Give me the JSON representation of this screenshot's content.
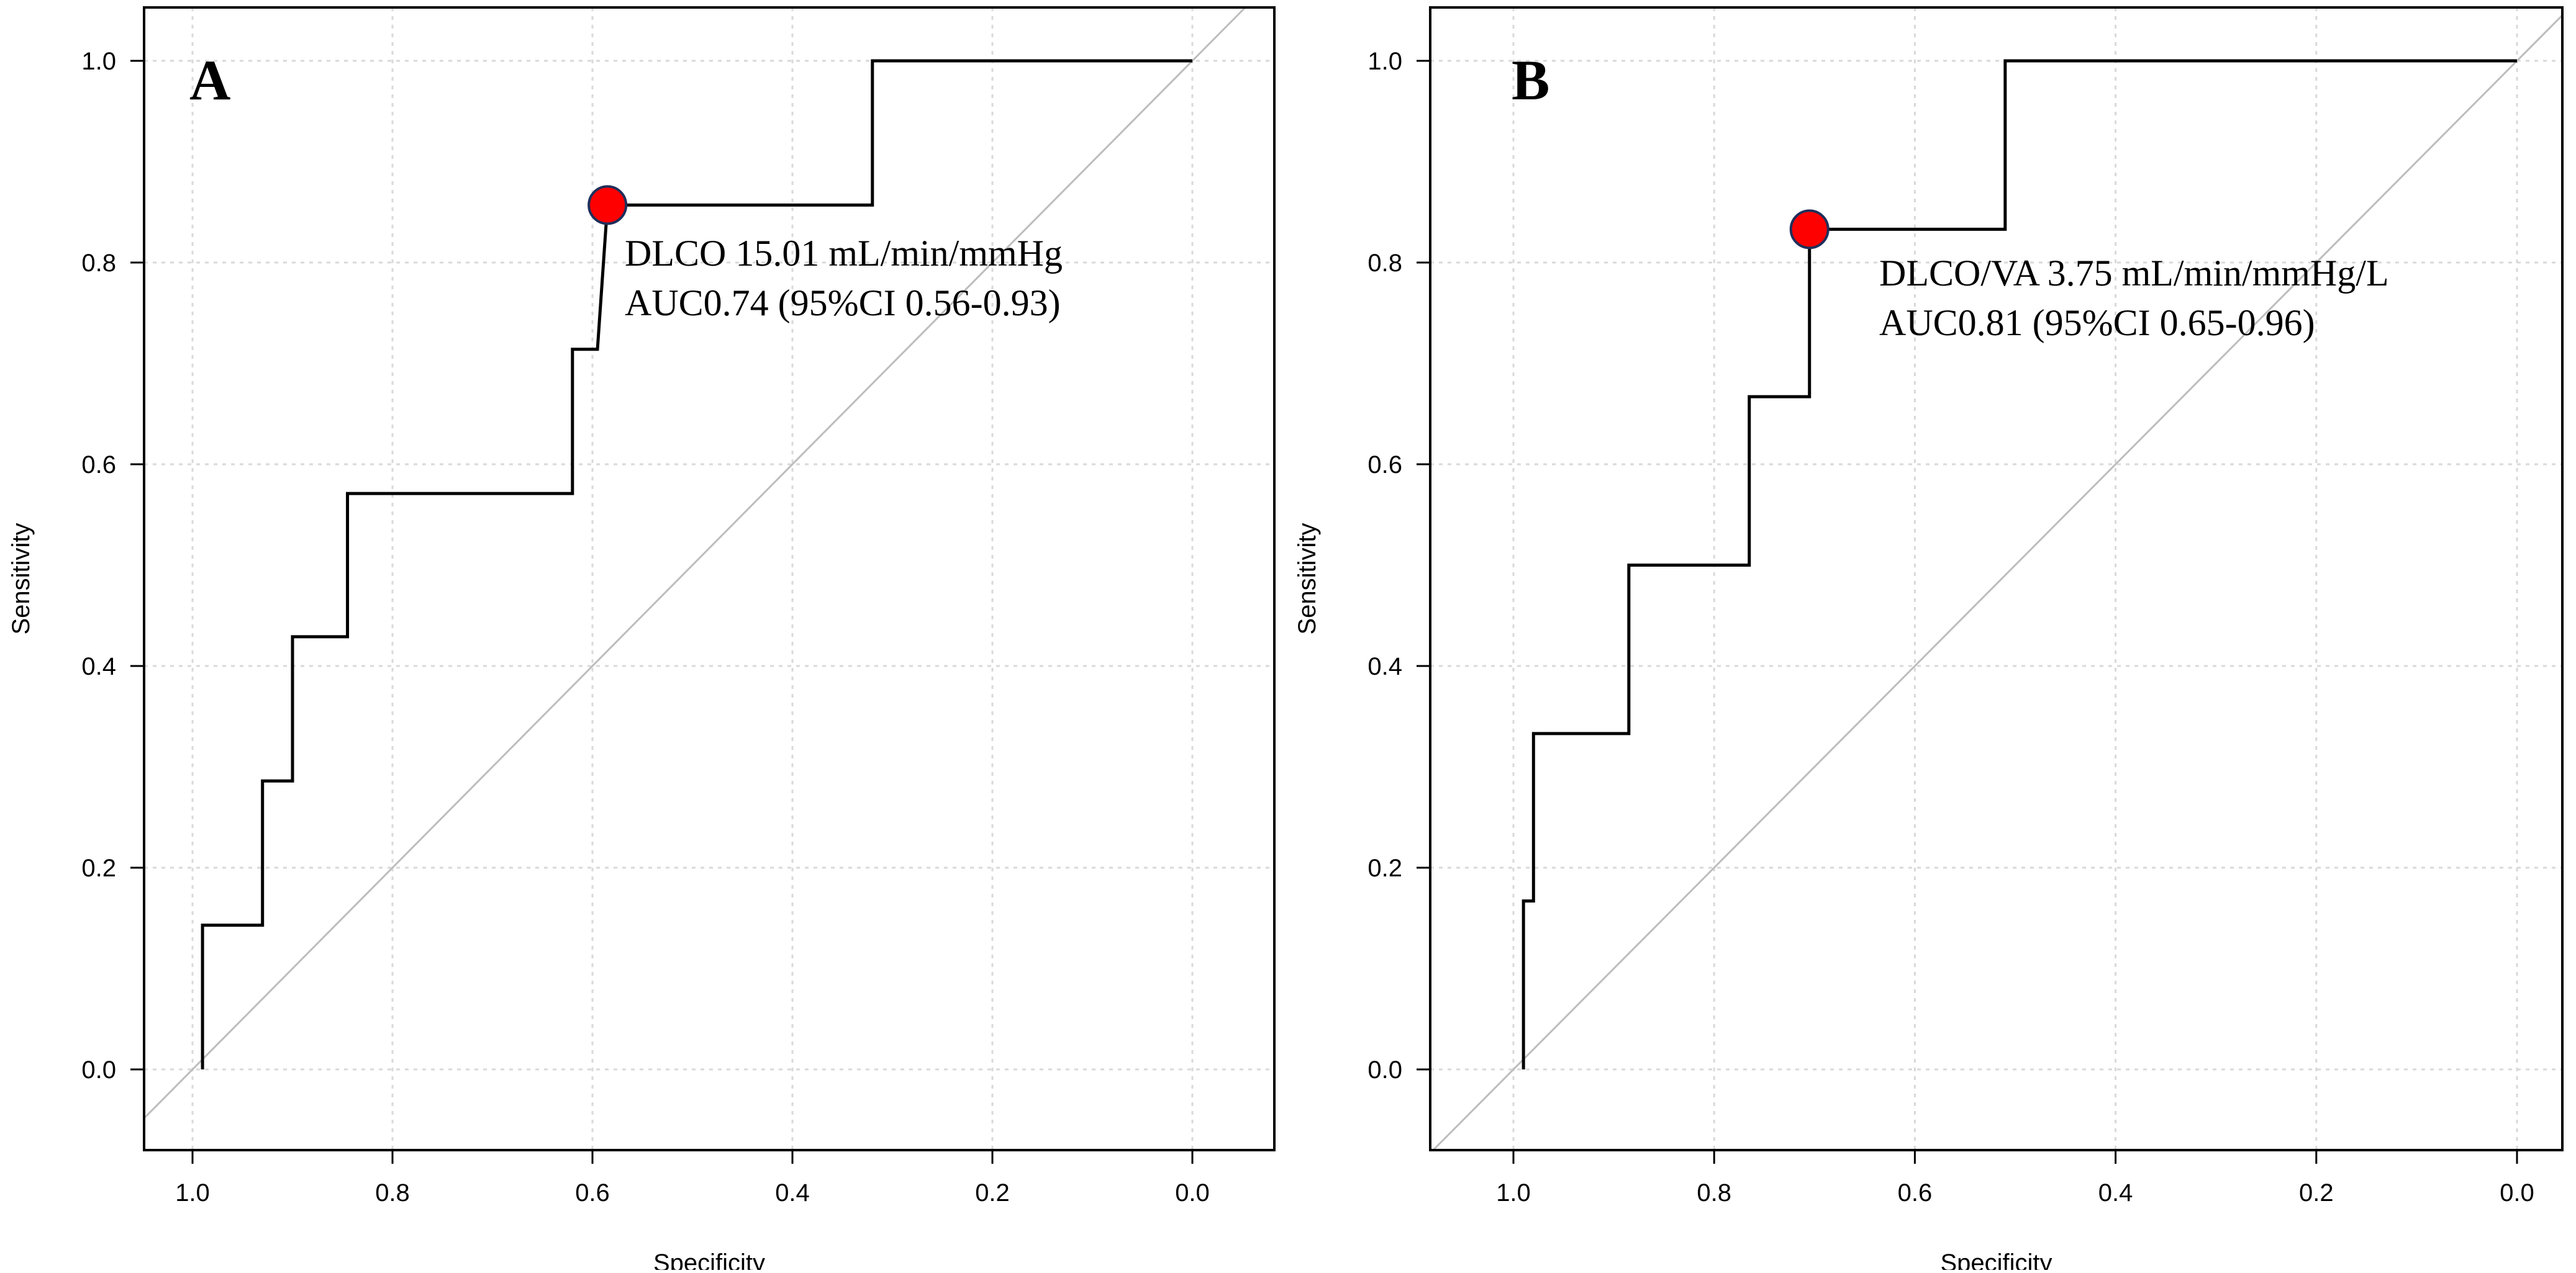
{
  "chart_data": [
    {
      "type": "line",
      "panel_label": "A",
      "xlabel": "Specificity",
      "ylabel": "Sensitivity",
      "xlim": [
        1.0,
        0.0
      ],
      "ylim": [
        0.0,
        1.0
      ],
      "x_reversed": true,
      "grid": true,
      "x_ticks": [
        1.0,
        0.8,
        0.6,
        0.4,
        0.2,
        0.0
      ],
      "y_ticks": [
        0.0,
        0.2,
        0.4,
        0.6,
        0.8,
        1.0
      ],
      "x_tick_labels": [
        "1.0",
        "0.8",
        "0.6",
        "0.4",
        "0.2",
        "0.0"
      ],
      "y_tick_labels": [
        "0.0",
        "0.2",
        "0.4",
        "0.6",
        "0.8",
        "1.0"
      ],
      "roc_curve": {
        "specificity": [
          0.99,
          0.99,
          0.93,
          0.93,
          0.9,
          0.9,
          0.845,
          0.845,
          0.62,
          0.62,
          0.595,
          0.585,
          0.585,
          0.32,
          0.32,
          0.0
        ],
        "sensitivity": [
          0.0,
          0.143,
          0.143,
          0.286,
          0.286,
          0.429,
          0.429,
          0.571,
          0.571,
          0.714,
          0.714,
          0.857,
          0.857,
          0.857,
          1.0,
          1.0
        ]
      },
      "diagonal": true,
      "cutoff_point": {
        "specificity": 0.585,
        "sensitivity": 0.857,
        "color": "#ff0000"
      },
      "annotation_lines": [
        "DLCO 15.01 mL/min/mmHg",
        "AUC0.74 (95%CI 0.56-0.93)"
      ]
    },
    {
      "type": "line",
      "panel_label": "B",
      "xlabel": "Specificity",
      "ylabel": "Sensitivity",
      "xlim": [
        1.0,
        0.0
      ],
      "ylim": [
        0.0,
        1.0
      ],
      "x_reversed": true,
      "grid": true,
      "x_ticks": [
        1.0,
        0.8,
        0.6,
        0.4,
        0.2,
        0.0
      ],
      "y_ticks": [
        0.0,
        0.2,
        0.4,
        0.6,
        0.8,
        1.0
      ],
      "x_tick_labels": [
        "1.0",
        "0.8",
        "0.6",
        "0.4",
        "0.2",
        "0.0"
      ],
      "y_tick_labels": [
        "0.0",
        "0.2",
        "0.4",
        "0.6",
        "0.8",
        "1.0"
      ],
      "roc_curve": {
        "specificity": [
          0.99,
          0.99,
          0.98,
          0.98,
          0.895,
          0.895,
          0.885,
          0.885,
          0.765,
          0.765,
          0.705,
          0.705,
          0.51,
          0.51,
          0.0
        ],
        "sensitivity": [
          0.0,
          0.167,
          0.167,
          0.333,
          0.333,
          0.333,
          0.333,
          0.5,
          0.5,
          0.667,
          0.667,
          0.833,
          0.833,
          1.0,
          1.0
        ]
      },
      "diagonal": true,
      "cutoff_point": {
        "specificity": 0.705,
        "sensitivity": 0.833,
        "color": "#ff0000"
      },
      "annotation_lines": [
        "DLCO/VA 3.75 mL/min/mmHg/L",
        "AUC0.81 (95%CI 0.65-0.96)"
      ]
    }
  ]
}
